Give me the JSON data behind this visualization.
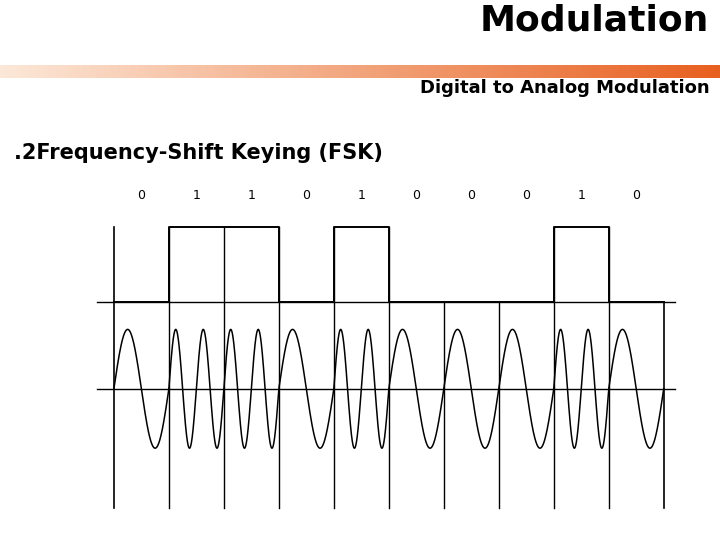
{
  "title": "Modulation",
  "subtitle": "Digital to Analog Modulation",
  "fsk_label": ".2Frequency-Shift Keying (FSK)",
  "bits": [
    0,
    1,
    1,
    0,
    1,
    0,
    0,
    0,
    1,
    0
  ],
  "bit_duration": 1.0,
  "freq_high": 2.0,
  "freq_low": 1.0,
  "fsk_amplitude": 1.0,
  "bg_color": "#ffffff",
  "signal_color": "#000000",
  "title_color": "#000000",
  "gradient_colors": [
    "#fce8d8",
    "#e86020"
  ],
  "title_fontsize": 26,
  "subtitle_fontsize": 13,
  "fsk_label_fontsize": 15,
  "bit_label_fontsize": 9,
  "digital_y_low": 1.6,
  "digital_y_high": 3.0,
  "fsk_amp": 1.1,
  "ylim": [
    -2.4,
    3.8
  ],
  "xlim_left": -0.5,
  "xlim_right": 10.5
}
